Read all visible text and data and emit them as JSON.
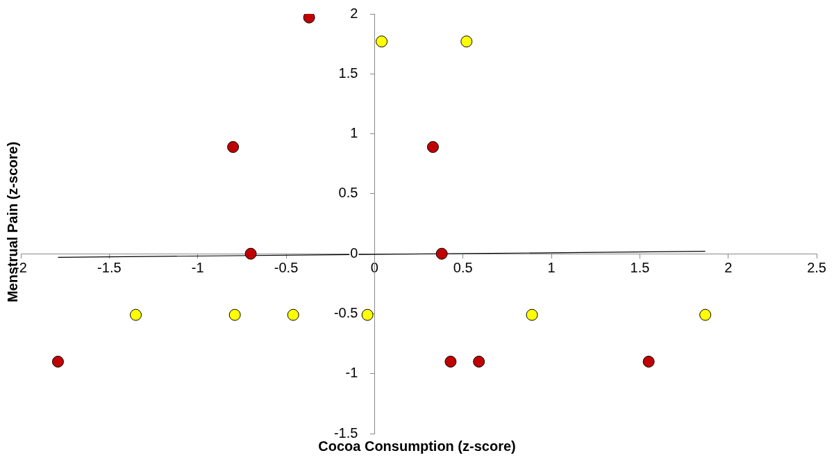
{
  "chart_data": {
    "type": "scatter",
    "xlabel": "Cocoa Consumption (z-score)",
    "ylabel": "Menstrual Pain (z-score)",
    "xlim": [
      -2,
      2.5
    ],
    "ylim": [
      -1.5,
      2
    ],
    "xticks": [
      -2,
      -1.5,
      -1,
      -0.5,
      0,
      0.5,
      1,
      1.5,
      2,
      2.5
    ],
    "yticks": [
      -1.5,
      -1,
      -0.5,
      0,
      0.5,
      1,
      1.5,
      2
    ],
    "grid": false,
    "marker": "circle",
    "series": [
      {
        "color": "#c00000",
        "x": [
          -1.79,
          -0.8,
          -0.7,
          -0.37,
          0.38,
          0.33,
          0.43,
          0.59,
          1.55
        ],
        "values": [
          -0.9,
          0.89,
          0,
          1.97,
          0,
          0.89,
          -0.9,
          -0.9,
          -0.9
        ]
      },
      {
        "color": "#ffff00",
        "x": [
          0.04,
          0.52,
          -1.35,
          -0.79,
          -0.46,
          -0.04,
          0.89,
          1.87
        ],
        "values": [
          1.77,
          1.77,
          -0.51,
          -0.51,
          -0.51,
          -0.51,
          -0.51,
          -0.51
        ]
      },
      {
        "type": "line",
        "color": "#000000",
        "marker": "none",
        "x": [
          -1.79,
          1.87
        ],
        "values": [
          -0.03,
          0.02
        ]
      }
    ]
  }
}
